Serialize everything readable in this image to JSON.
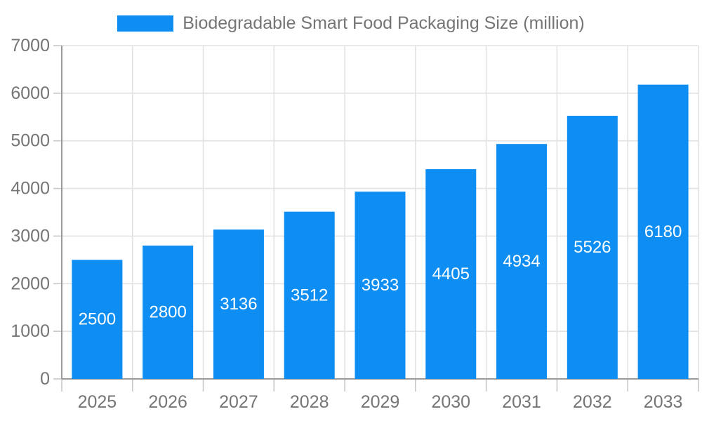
{
  "legend": {
    "label": "Biodegradable Smart Food Packaging Size (million)"
  },
  "colors": {
    "bar": "#0e8ef3",
    "value_label": "#ffffff",
    "axis_label": "#757575",
    "gridline": "#e2e2e2",
    "tick": "#c8c8c8",
    "axis_line": "#9a9a9a",
    "background": "#ffffff"
  },
  "chart_data": {
    "type": "bar",
    "title": "",
    "xlabel": "",
    "ylabel": "",
    "categories": [
      "2025",
      "2026",
      "2027",
      "2028",
      "2029",
      "2030",
      "2031",
      "2032",
      "2033"
    ],
    "series": [
      {
        "name": "Biodegradable Smart Food Packaging Size (million)",
        "values": [
          2500,
          2800,
          3136,
          3512,
          3933,
          4405,
          4934,
          5526,
          6180
        ]
      }
    ],
    "value_labels_shown": true,
    "value_label_position": "center-of-bar",
    "ylim": [
      0,
      7000
    ],
    "ytick_step": 1000,
    "grid": true,
    "legend_position": "top-center"
  }
}
